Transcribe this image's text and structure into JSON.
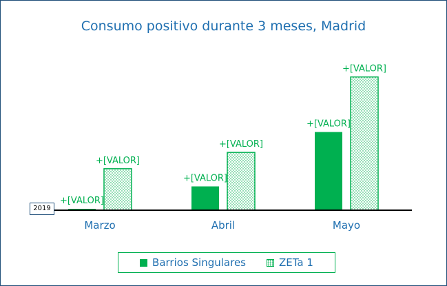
{
  "chart_data": {
    "type": "bar",
    "title": "Consumo positivo durante 3 meses, Madrid",
    "categories": [
      "Marzo",
      "Abril",
      "Mayo"
    ],
    "series": [
      {
        "name": "Barrios Singulares",
        "values": [
          2,
          35,
          115
        ],
        "labels": [
          "+[VALOR]",
          "+[VALOR]",
          "+[VALOR]"
        ],
        "fill": "solid"
      },
      {
        "name": "ZETa 1",
        "values": [
          61,
          85,
          196
        ],
        "labels": [
          "+[VALOR]",
          "+[VALOR]",
          "+[VALOR]"
        ],
        "fill": "dotted"
      }
    ],
    "ylim": [
      0,
      220
    ],
    "xlabel": "",
    "ylabel": "",
    "legend_position": "bottom",
    "grid": false,
    "annotation": "2019"
  },
  "colors": {
    "bar": "#00b050",
    "title": "#1f6fb0",
    "axis": "#000000",
    "frame": "#1f4e79"
  }
}
